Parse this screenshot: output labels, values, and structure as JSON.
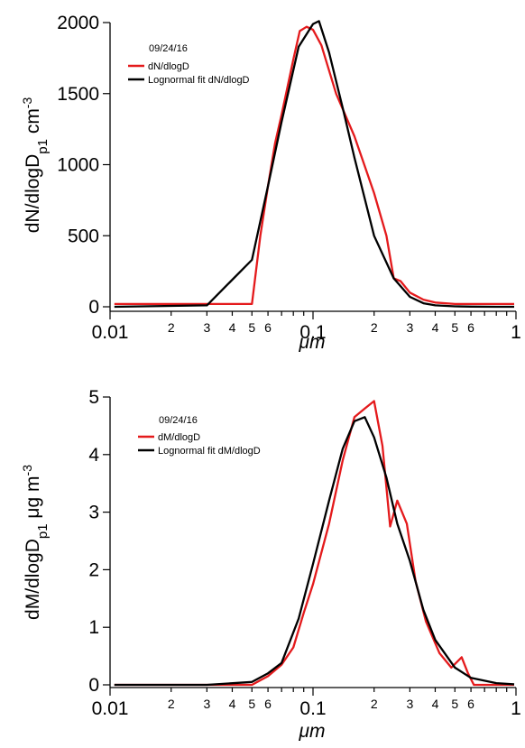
{
  "chart_data": [
    {
      "type": "line",
      "xscale": "log",
      "xlim": [
        0.01,
        1
      ],
      "ylim": [
        0,
        2000
      ],
      "xlabel": "μm",
      "ylabel_parts": {
        "main": "dN/dlogD",
        "sub": "p1",
        "unit": " cm",
        "sup": "-3"
      },
      "x_major_ticks": [
        {
          "value": 0.01,
          "label": "0.01"
        },
        {
          "value": 0.1,
          "label": "0.1"
        },
        {
          "value": 1,
          "label": "1"
        }
      ],
      "x_minor_ticks": [
        {
          "value": 0.02,
          "label": "2"
        },
        {
          "value": 0.03,
          "label": "3"
        },
        {
          "value": 0.04,
          "label": "4"
        },
        {
          "value": 0.05,
          "label": "5"
        },
        {
          "value": 0.06,
          "label": "6"
        },
        {
          "value": 0.2,
          "label": "2"
        },
        {
          "value": 0.3,
          "label": "3"
        },
        {
          "value": 0.4,
          "label": "4"
        },
        {
          "value": 0.5,
          "label": "5"
        },
        {
          "value": 0.6,
          "label": "6"
        }
      ],
      "y_ticks": [
        {
          "value": 0,
          "label": "0"
        },
        {
          "value": 500,
          "label": "500"
        },
        {
          "value": 1000,
          "label": "1000"
        },
        {
          "value": 1500,
          "label": "1500"
        },
        {
          "value": 2000,
          "label": "2000"
        }
      ],
      "legend_title": "09/24/16",
      "legend_position": "top-left",
      "series": [
        {
          "name": "dN/dlogD",
          "color": "#e41a1c",
          "x": [
            0.0105,
            0.05,
            0.055,
            0.06,
            0.065,
            0.07,
            0.08,
            0.086,
            0.093,
            0.1,
            0.11,
            0.13,
            0.16,
            0.2,
            0.23,
            0.25,
            0.27,
            0.3,
            0.35,
            0.4,
            0.5,
            0.6,
            0.8,
            0.98
          ],
          "y": [
            20,
            20,
            500,
            850,
            1150,
            1350,
            1740,
            1940,
            1970,
            1950,
            1840,
            1500,
            1200,
            800,
            500,
            200,
            180,
            100,
            50,
            30,
            20,
            20,
            20,
            20
          ]
        },
        {
          "name": "Lognormal fit dN/dlogD",
          "color": "#000000",
          "x": [
            0.0105,
            0.03,
            0.05,
            0.06,
            0.07,
            0.085,
            0.1,
            0.107,
            0.12,
            0.14,
            0.16,
            0.2,
            0.25,
            0.3,
            0.35,
            0.4,
            0.5,
            0.6,
            0.8,
            0.98
          ],
          "y": [
            0,
            10,
            330,
            850,
            1300,
            1830,
            1990,
            2010,
            1790,
            1400,
            1050,
            500,
            200,
            70,
            25,
            10,
            3,
            1,
            0,
            0
          ]
        }
      ]
    },
    {
      "type": "line",
      "xscale": "log",
      "xlim": [
        0.01,
        1
      ],
      "ylim": [
        0,
        5
      ],
      "xlabel": "μm",
      "ylabel_parts": {
        "main": "dM/dlogD",
        "sub": "p1",
        "unit": "  μg m",
        "sup": "-3"
      },
      "x_major_ticks": [
        {
          "value": 0.01,
          "label": "0.01"
        },
        {
          "value": 0.1,
          "label": "0.1"
        },
        {
          "value": 1,
          "label": "1"
        }
      ],
      "x_minor_ticks": [
        {
          "value": 0.02,
          "label": "2"
        },
        {
          "value": 0.03,
          "label": "3"
        },
        {
          "value": 0.04,
          "label": "4"
        },
        {
          "value": 0.05,
          "label": "5"
        },
        {
          "value": 0.06,
          "label": "6"
        },
        {
          "value": 0.2,
          "label": "2"
        },
        {
          "value": 0.3,
          "label": "3"
        },
        {
          "value": 0.4,
          "label": "4"
        },
        {
          "value": 0.5,
          "label": "5"
        },
        {
          "value": 0.6,
          "label": "6"
        }
      ],
      "y_ticks": [
        {
          "value": 0,
          "label": "0"
        },
        {
          "value": 1,
          "label": "1"
        },
        {
          "value": 2,
          "label": "2"
        },
        {
          "value": 3,
          "label": "3"
        },
        {
          "value": 4,
          "label": "4"
        },
        {
          "value": 5,
          "label": "5"
        }
      ],
      "legend_title": "09/24/16",
      "legend_position": "top-left",
      "series": [
        {
          "name": "dM/dlogD",
          "color": "#e41a1c",
          "x": [
            0.0105,
            0.03,
            0.05,
            0.06,
            0.07,
            0.08,
            0.09,
            0.1,
            0.12,
            0.14,
            0.16,
            0.18,
            0.2,
            0.22,
            0.24,
            0.26,
            0.29,
            0.32,
            0.36,
            0.42,
            0.48,
            0.54,
            0.58,
            0.62,
            0.8,
            0.98
          ],
          "y": [
            0,
            0,
            0,
            0.15,
            0.35,
            0.65,
            1.25,
            1.75,
            2.8,
            3.9,
            4.65,
            4.8,
            4.93,
            4.15,
            2.75,
            3.2,
            2.8,
            1.8,
            1.1,
            0.55,
            0.3,
            0.48,
            0.2,
            0,
            0,
            0
          ]
        },
        {
          "name": "Lognormal fit dM/dlogD",
          "color": "#000000",
          "x": [
            0.0105,
            0.03,
            0.05,
            0.06,
            0.07,
            0.085,
            0.1,
            0.12,
            0.14,
            0.16,
            0.18,
            0.2,
            0.23,
            0.26,
            0.3,
            0.35,
            0.4,
            0.5,
            0.6,
            0.8,
            0.98
          ],
          "y": [
            0,
            0,
            0.05,
            0.2,
            0.38,
            1.15,
            2.1,
            3.2,
            4.1,
            4.58,
            4.65,
            4.3,
            3.6,
            2.8,
            2.15,
            1.3,
            0.78,
            0.3,
            0.12,
            0.03,
            0.01
          ]
        }
      ]
    }
  ]
}
